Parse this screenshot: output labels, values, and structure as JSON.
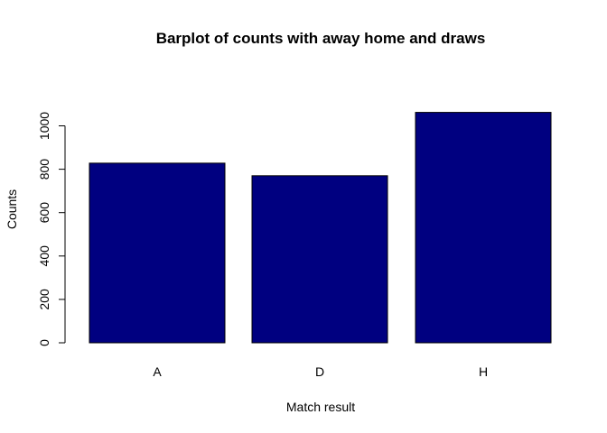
{
  "chart_data": {
    "type": "bar",
    "title": "Barplot of counts with away home and draws",
    "xlabel": "Match result",
    "ylabel": "Counts",
    "categories": [
      "A",
      "D",
      "H"
    ],
    "values": [
      828,
      770,
      1062
    ],
    "ylim": [
      0,
      1200
    ],
    "yticks": [
      0,
      200,
      400,
      600,
      800,
      1000
    ],
    "ytick_labels": [
      "0",
      "200",
      "400",
      "600",
      "800",
      "1000"
    ],
    "bar_color": "#000080",
    "grid": false,
    "legend": "none"
  }
}
